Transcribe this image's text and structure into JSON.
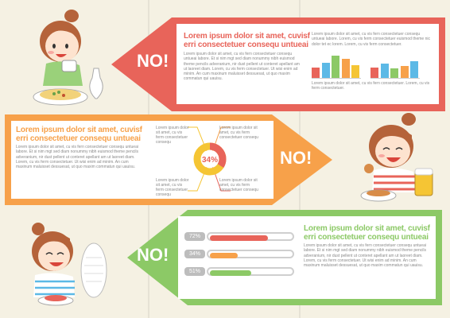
{
  "colors": {
    "red": "#e8645a",
    "orange": "#f7a14a",
    "green": "#8cc966",
    "blue": "#5cb9e6",
    "yellow": "#f5c534",
    "gray_text": "#8a8a8a",
    "background": "#f5f1e3"
  },
  "section1": {
    "no_label": "NO!",
    "headline": "Lorem ipsum dolor sit amet, cuvisf erri consectetuer consequ untueai",
    "body": "Lorem ipsum dolor sit amet, cu vis fern consectetuer consequ untueai labore. Et si nim mgt sed diam nonummy nibh euismod theme pencils adveranium, nir dust pellent ut conteret apellant am ut laoreet diam. Lorem, cu vis ferm consectetuer. Ut wisi enim ad minim. An cum maxinum maluisset dessuesat, ut quo maxim commatun qui uauisu.",
    "side_lines": "Lorem ipsum dolor sit amet, cu vis fern consectetuer consequ untueai labore. Lorem, cu vis ferm consectetuer euismod theme nic dolor tet ec lorem. Lorem, cu vis ferm consectetuer.",
    "mini_chart_a": [
      {
        "value": 0.45,
        "color": "#e8645a"
      },
      {
        "value": 0.65,
        "color": "#5cb9e6"
      },
      {
        "value": 0.95,
        "color": "#8cc966"
      },
      {
        "value": 0.8,
        "color": "#f7a14a"
      },
      {
        "value": 0.55,
        "color": "#f5c534"
      }
    ],
    "mini_chart_b": [
      {
        "value": 0.45,
        "color": "#e8645a"
      },
      {
        "value": 0.6,
        "color": "#5cb9e6"
      },
      {
        "value": 0.4,
        "color": "#8cc966"
      },
      {
        "value": 0.5,
        "color": "#f7a14a"
      },
      {
        "value": 0.7,
        "color": "#5cb9e6"
      }
    ],
    "mini_caption": "Lorem ipsum dolor sit amet, cu vis fern consectetuer. Lorem, cu vis ferm consectetuer."
  },
  "section2": {
    "no_label": "NO!",
    "headline": "Lorem ipsum dolor sit amet, cuvisf erri consectetuer consequ untueai",
    "body": "Lorem ipsum dolor sit amet, cu vis fern consectetuer consequ untueai labore. Et si nim mgt sed diam nonummy nibh euismod theme pencils adveranium, nir dust pellent ut conteret apellant am ut laoreet diam. Lorem, cu vis ferm consectetuer. Ut wisi enim ad minim. An cum maxinum maluisset dessuesat, ut quo maxim commatun qui uauisu.",
    "donut_value": "34%",
    "donut_fraction": 0.34,
    "callouts": [
      "Lorem ipsum dolor sit amet, cu vis ferm consectetuer consequ",
      "Lorem ipsum dolor sit amet, cu vis ferm consectetuer consequ",
      "Lorem ipsum dolor sit amet, cu vis ferm consectetuer consequ",
      "Lorem ipsum dolor sit amet, cu vis ferm consectetuer consequ"
    ]
  },
  "section3": {
    "no_label": "NO!",
    "headline": "Lorem ipsum dolor sit amet, cuvisf erri consectetuer consequ untueai",
    "body": "Lorem ipsum dolor sit amet, cu vis fern consectetuer consequ untueai labore. Et si nim mgt sed diam nonummy nibh euismod theme pencils adveranium, nir dust pellent ut conteret apellant am ut laoreet diam. Lorem, cu vis ferm consectetuer. Ut wisi enim ad minim. An cum maxinum maluisset dessuesat, ut quo maxim commatun qui uauisu.",
    "bars": [
      {
        "label": "72%",
        "value": 0.72,
        "color": "#e8645a"
      },
      {
        "label": "34%",
        "value": 0.34,
        "color": "#f7a14a"
      },
      {
        "label": "51%",
        "value": 0.51,
        "color": "#8cc966"
      }
    ]
  }
}
